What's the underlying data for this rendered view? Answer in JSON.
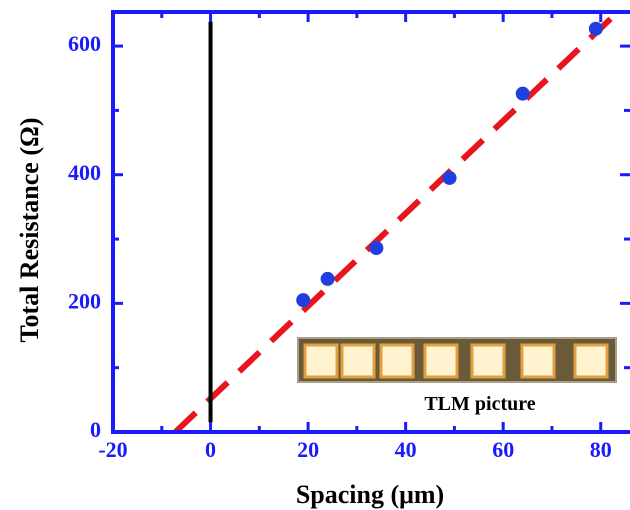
{
  "chart_data": {
    "type": "scatter",
    "x_label": "Spacing (μm)",
    "y_label": "Total Resistance (Ω)",
    "xlim": [
      -20,
      86
    ],
    "ylim": [
      0,
      653
    ],
    "xticks": [
      -20,
      0,
      20,
      40,
      60,
      80
    ],
    "yticks": [
      0,
      200,
      400,
      600
    ],
    "axis_color": "#1a1aff",
    "series": [
      {
        "type": "scatter",
        "color": "#1f3fe0",
        "x": [
          19,
          24,
          34,
          49,
          64,
          79
        ],
        "values": [
          205,
          238,
          286,
          395,
          526,
          627
        ]
      },
      {
        "type": "line",
        "color": "#e8141e",
        "dashed": true,
        "x": [
          -7.2,
          83.5
        ],
        "values": [
          0,
          653
        ]
      },
      {
        "type": "line",
        "color": "#000000",
        "x": [
          0,
          0
        ],
        "values": [
          15,
          638
        ]
      }
    ],
    "inset_caption": "TLM picture"
  }
}
